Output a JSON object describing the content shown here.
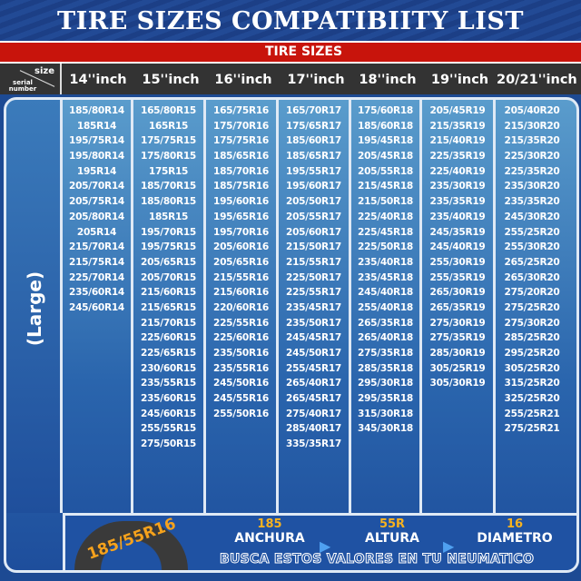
{
  "title": "TIRE SIZES COMPATIBIITY LIST",
  "section": "TIRE SIZES",
  "corner": {
    "size": "size",
    "serial": "serial number"
  },
  "side_label": "(Large)",
  "columns": [
    {
      "header": "14''inch",
      "sizes": [
        "185/80R14",
        "185R14",
        "195/75R14",
        "195/80R14",
        "195R14",
        "205/70R14",
        "205/75R14",
        "205/80R14",
        "205R14",
        "215/70R14",
        "215/75R14",
        "225/70R14",
        "235/60R14",
        "245/60R14"
      ]
    },
    {
      "header": "15''inch",
      "sizes": [
        "165/80R15",
        "165R15",
        "175/75R15",
        "175/80R15",
        "175R15",
        "185/70R15",
        "185/80R15",
        "185R15",
        "195/70R15",
        "195/75R15",
        "205/65R15",
        "205/70R15",
        "215/60R15",
        "215/65R15",
        "215/70R15",
        "225/60R15",
        "225/65R15",
        "230/60R15",
        "235/55R15",
        "235/60R15",
        "245/60R15",
        "255/55R15",
        "275/50R15"
      ]
    },
    {
      "header": "16''inch",
      "sizes": [
        "165/75R16",
        "175/70R16",
        "175/75R16",
        "185/65R16",
        "185/70R16",
        "185/75R16",
        "195/60R16",
        "195/65R16",
        "195/70R16",
        "205/60R16",
        "205/65R16",
        "215/55R16",
        "215/60R16",
        "220/60R16",
        "225/55R16",
        "225/60R16",
        "235/50R16",
        "235/55R16",
        "245/50R16",
        "245/55R16",
        "255/50R16"
      ]
    },
    {
      "header": "17''inch",
      "sizes": [
        "165/70R17",
        "175/65R17",
        "185/60R17",
        "185/65R17",
        "195/55R17",
        "195/60R17",
        "205/50R17",
        "205/55R17",
        "205/60R17",
        "215/50R17",
        "215/55R17",
        "225/50R17",
        "225/55R17",
        "235/45R17",
        "235/50R17",
        "245/45R17",
        "245/50R17",
        "255/45R17",
        "265/40R17",
        "265/45R17",
        "275/40R17",
        "285/40R17",
        "335/35R17"
      ]
    },
    {
      "header": "18''inch",
      "sizes": [
        "175/60R18",
        "185/60R18",
        "195/45R18",
        "205/45R18",
        "205/55R18",
        "215/45R18",
        "215/50R18",
        "225/40R18",
        "225/45R18",
        "225/50R18",
        "235/40R18",
        "235/45R18",
        "245/40R18",
        "255/40R18",
        "265/35R18",
        "265/40R18",
        "275/35R18",
        "285/35R18",
        "295/30R18",
        "295/35R18",
        "315/30R18",
        "345/30R18"
      ]
    },
    {
      "header": "19''inch",
      "sizes": [
        "205/45R19",
        "215/35R19",
        "215/40R19",
        "225/35R19",
        "225/40R19",
        "235/30R19",
        "235/35R19",
        "235/40R19",
        "245/35R19",
        "245/40R19",
        "255/30R19",
        "255/35R19",
        "265/30R19",
        "265/35R19",
        "275/30R19",
        "275/35R19",
        "285/30R19",
        "305/25R19",
        "305/30R19"
      ]
    },
    {
      "header": "20/21''inch",
      "sizes": [
        "205/40R20",
        "215/30R20",
        "215/35R20",
        "225/30R20",
        "225/35R20",
        "235/30R20",
        "235/35R20",
        "245/30R20",
        "255/25R20",
        "255/30R20",
        "265/25R20",
        "265/30R20",
        "275/20R20",
        "275/25R20",
        "275/30R20",
        "285/25R20",
        "295/25R20",
        "305/25R20",
        "315/25R20",
        "325/25R20",
        "255/25R21",
        "275/25R21"
      ]
    }
  ],
  "legend": {
    "tire_text": "185/55R16",
    "width_value": "185",
    "width_label": "ANCHURA",
    "height_value": "55R",
    "height_label": "ALTURA",
    "diameter_value": "16",
    "diameter_label": "DIAMETRO",
    "instruction": "BUSCA ESTOS VALORES EN TU NEUMATICO"
  },
  "colors": {
    "title_bg": "#1c3f86",
    "band": "#c8140c",
    "header_bg": "#333333",
    "accent": "#f7b21f"
  }
}
